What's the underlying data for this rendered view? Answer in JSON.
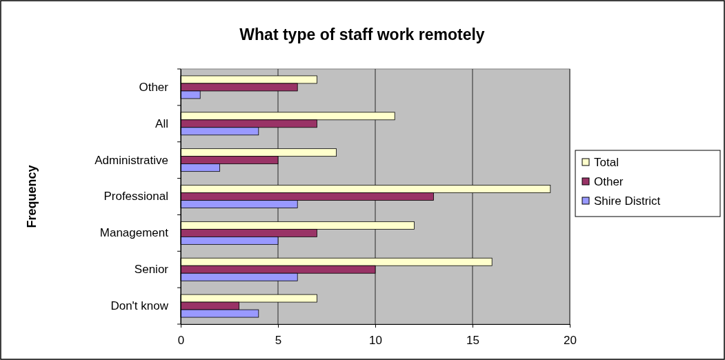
{
  "chart_data": {
    "type": "bar",
    "orientation": "horizontal",
    "title": "What type of staff work remotely",
    "ylabel": "Frequency",
    "categories": [
      "Other",
      "All",
      "Administrative",
      "Professional",
      "Management",
      "Senior",
      "Don't know"
    ],
    "series": [
      {
        "name": "Total",
        "color": "#ffffcc",
        "values": [
          7,
          11,
          8,
          19,
          12,
          16,
          7
        ]
      },
      {
        "name": "Other",
        "color": "#993366",
        "values": [
          6,
          7,
          5,
          13,
          7,
          10,
          3
        ]
      },
      {
        "name": "Shire District",
        "color": "#9999ff",
        "values": [
          1,
          4,
          2,
          6,
          5,
          6,
          4
        ]
      }
    ],
    "xlim": [
      0,
      20
    ],
    "xticks": [
      0,
      5,
      10,
      15,
      20
    ],
    "grid": "x",
    "legend": "right"
  }
}
